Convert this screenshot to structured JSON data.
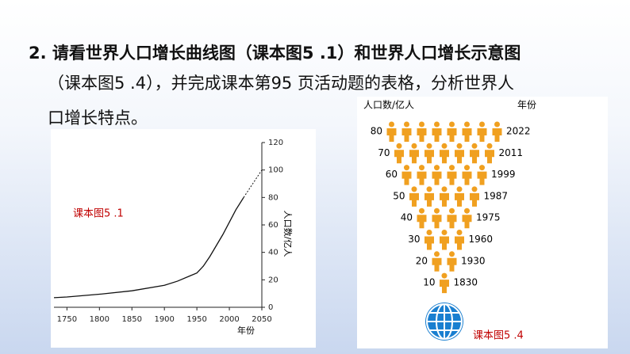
{
  "heading": {
    "lines": [
      "2. 请看世界人口增长曲线图（课本图5 .1）和世界人口增长示意图",
      "（课本图5 .4），并完成课本第95 页活动题的表格，分析世界人",
      "口增长特点。"
    ]
  },
  "figure_5_1": {
    "caption": "课本图5 .1",
    "y_label": "人口数/亿人",
    "x_label": "年份",
    "xlim": [
      1730,
      2050
    ],
    "ylim": [
      0,
      120
    ],
    "xticks": [
      1750,
      1800,
      1850,
      1900,
      1950,
      2000,
      2050
    ],
    "yticks": [
      0,
      20,
      40,
      60,
      80,
      100,
      120
    ],
    "x": [
      1730,
      1750,
      1800,
      1850,
      1900,
      1920,
      1940,
      1950,
      1960,
      1970,
      1980,
      1990,
      2000,
      2010,
      2022
    ],
    "values": [
      7,
      7.5,
      9.5,
      12,
      16,
      19,
      23,
      25,
      30,
      37,
      45,
      53,
      62,
      71,
      80
    ],
    "projection_x": [
      2022,
      2050
    ],
    "projection_values": [
      80,
      100
    ]
  },
  "figure_5_4": {
    "caption": "课本图5 .4",
    "y_label": "人口数/亿人",
    "x_label": "年份",
    "values": [
      80,
      70,
      60,
      50,
      40,
      30,
      20,
      10
    ],
    "years": [
      "2022",
      "2011",
      "1999",
      "1987",
      "1975",
      "1960",
      "1930",
      "1830"
    ]
  }
}
